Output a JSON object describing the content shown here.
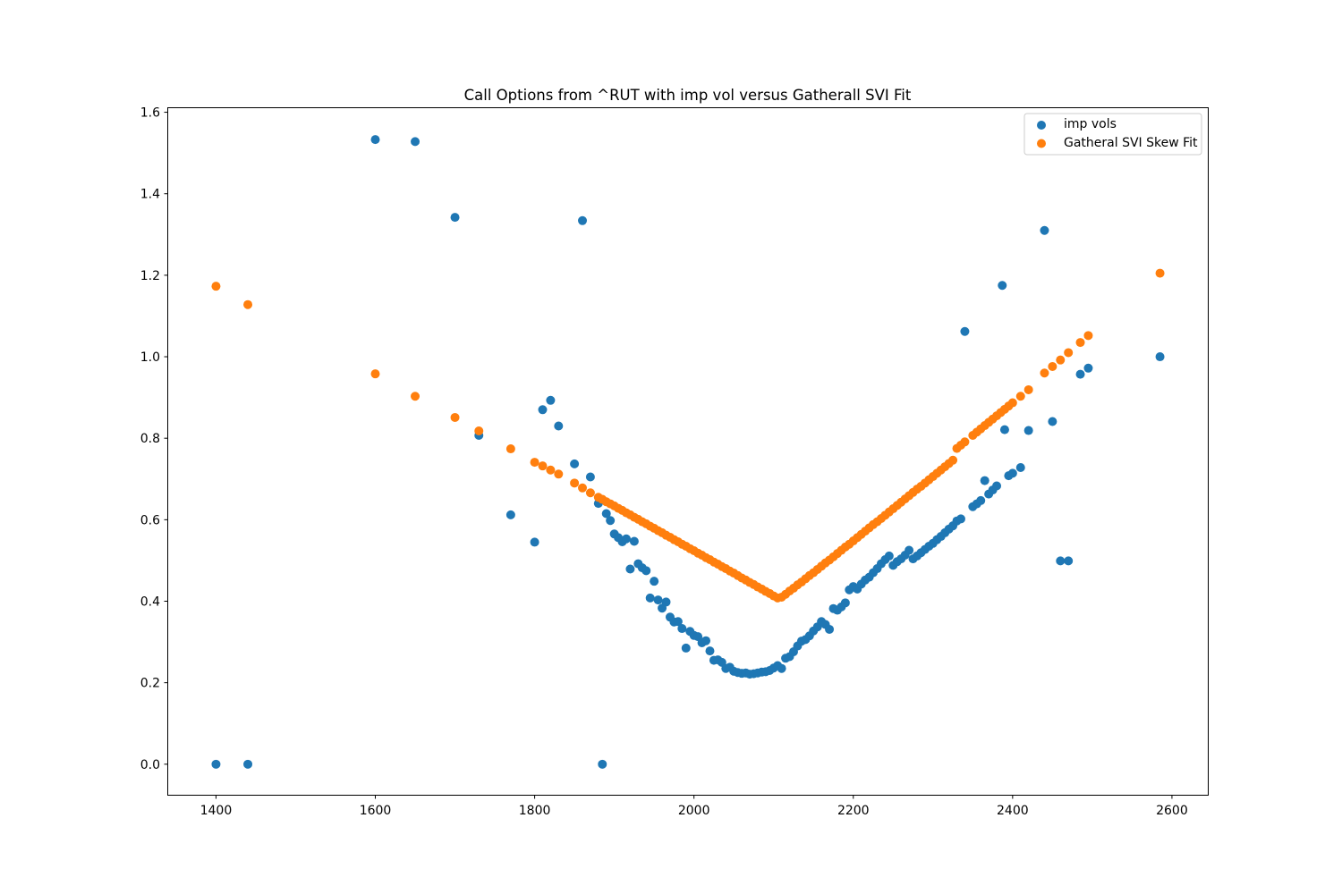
{
  "chart_data": {
    "type": "scatter",
    "title": "Call Options from ^RUT with imp vol versus Gatherall SVI Fit",
    "xlabel": "",
    "ylabel": "",
    "xlim": [
      1340,
      2645
    ],
    "ylim": [
      -0.075,
      1.61
    ],
    "x_ticks": [
      "1400",
      "1600",
      "1800",
      "2000",
      "2200",
      "2400",
      "2600"
    ],
    "y_ticks": [
      "0.0",
      "0.2",
      "0.4",
      "0.6",
      "0.8",
      "1.0",
      "1.2",
      "1.4",
      "1.6"
    ],
    "grid": false,
    "legend_position": "top-right",
    "series": [
      {
        "name": "imp vols",
        "color": "#1f77b4",
        "points": [
          [
            1400,
            0.0
          ],
          [
            1440,
            0.0
          ],
          [
            1600,
            1.533
          ],
          [
            1650,
            1.528
          ],
          [
            1700,
            1.342
          ],
          [
            1730,
            0.807
          ],
          [
            1770,
            0.612
          ],
          [
            1800,
            0.545
          ],
          [
            1810,
            0.87
          ],
          [
            1820,
            0.893
          ],
          [
            1830,
            0.83
          ],
          [
            1850,
            0.737
          ],
          [
            1860,
            1.334
          ],
          [
            1870,
            0.705
          ],
          [
            1880,
            0.64
          ],
          [
            1885,
            0.0
          ],
          [
            1890,
            0.615
          ],
          [
            1895,
            0.598
          ],
          [
            1900,
            0.565
          ],
          [
            1905,
            0.556
          ],
          [
            1910,
            0.546
          ],
          [
            1915,
            0.553
          ],
          [
            1920,
            0.479
          ],
          [
            1925,
            0.547
          ],
          [
            1930,
            0.492
          ],
          [
            1935,
            0.482
          ],
          [
            1940,
            0.475
          ],
          [
            1945,
            0.408
          ],
          [
            1950,
            0.449
          ],
          [
            1955,
            0.403
          ],
          [
            1960,
            0.383
          ],
          [
            1965,
            0.398
          ],
          [
            1970,
            0.361
          ],
          [
            1975,
            0.349
          ],
          [
            1980,
            0.35
          ],
          [
            1985,
            0.333
          ],
          [
            1990,
            0.285
          ],
          [
            1995,
            0.326
          ],
          [
            2000,
            0.316
          ],
          [
            2005,
            0.313
          ],
          [
            2010,
            0.298
          ],
          [
            2015,
            0.303
          ],
          [
            2020,
            0.278
          ],
          [
            2025,
            0.255
          ],
          [
            2030,
            0.256
          ],
          [
            2035,
            0.25
          ],
          [
            2040,
            0.235
          ],
          [
            2045,
            0.238
          ],
          [
            2050,
            0.228
          ],
          [
            2055,
            0.225
          ],
          [
            2060,
            0.223
          ],
          [
            2065,
            0.224
          ],
          [
            2070,
            0.221
          ],
          [
            2075,
            0.222
          ],
          [
            2080,
            0.224
          ],
          [
            2085,
            0.226
          ],
          [
            2090,
            0.227
          ],
          [
            2095,
            0.23
          ],
          [
            2100,
            0.236
          ],
          [
            2105,
            0.242
          ],
          [
            2110,
            0.235
          ],
          [
            2115,
            0.26
          ],
          [
            2120,
            0.264
          ],
          [
            2125,
            0.276
          ],
          [
            2130,
            0.29
          ],
          [
            2135,
            0.302
          ],
          [
            2140,
            0.306
          ],
          [
            2145,
            0.315
          ],
          [
            2150,
            0.327
          ],
          [
            2155,
            0.337
          ],
          [
            2160,
            0.35
          ],
          [
            2165,
            0.343
          ],
          [
            2170,
            0.331
          ],
          [
            2175,
            0.382
          ],
          [
            2180,
            0.378
          ],
          [
            2185,
            0.386
          ],
          [
            2190,
            0.396
          ],
          [
            2195,
            0.428
          ],
          [
            2200,
            0.436
          ],
          [
            2205,
            0.43
          ],
          [
            2210,
            0.442
          ],
          [
            2215,
            0.452
          ],
          [
            2220,
            0.459
          ],
          [
            2225,
            0.47
          ],
          [
            2230,
            0.48
          ],
          [
            2235,
            0.492
          ],
          [
            2240,
            0.502
          ],
          [
            2245,
            0.511
          ],
          [
            2250,
            0.488
          ],
          [
            2255,
            0.497
          ],
          [
            2260,
            0.504
          ],
          [
            2265,
            0.513
          ],
          [
            2270,
            0.525
          ],
          [
            2275,
            0.504
          ],
          [
            2280,
            0.511
          ],
          [
            2285,
            0.519
          ],
          [
            2290,
            0.527
          ],
          [
            2295,
            0.535
          ],
          [
            2300,
            0.542
          ],
          [
            2305,
            0.551
          ],
          [
            2310,
            0.559
          ],
          [
            2315,
            0.568
          ],
          [
            2320,
            0.577
          ],
          [
            2325,
            0.585
          ],
          [
            2330,
            0.597
          ],
          [
            2335,
            0.602
          ],
          [
            2340,
            1.062
          ],
          [
            2350,
            0.632
          ],
          [
            2355,
            0.639
          ],
          [
            2360,
            0.647
          ],
          [
            2365,
            0.696
          ],
          [
            2370,
            0.663
          ],
          [
            2375,
            0.673
          ],
          [
            2380,
            0.683
          ],
          [
            2387,
            1.175
          ],
          [
            2390,
            0.821
          ],
          [
            2395,
            0.708
          ],
          [
            2400,
            0.714
          ],
          [
            2410,
            0.728
          ],
          [
            2420,
            0.819
          ],
          [
            2440,
            1.31
          ],
          [
            2450,
            0.841
          ],
          [
            2460,
            0.499
          ],
          [
            2470,
            0.499
          ],
          [
            2485,
            0.957
          ],
          [
            2495,
            0.972
          ],
          [
            2585,
            1.0
          ]
        ]
      },
      {
        "name": "Gatheral SVI Skew Fit",
        "color": "#ff7f0e",
        "points": [
          [
            1400,
            1.173
          ],
          [
            1440,
            1.128
          ],
          [
            1600,
            0.958
          ],
          [
            1650,
            0.903
          ],
          [
            1700,
            0.851
          ],
          [
            1730,
            0.818
          ],
          [
            1770,
            0.774
          ],
          [
            1800,
            0.741
          ],
          [
            1810,
            0.732
          ],
          [
            1820,
            0.722
          ],
          [
            1830,
            0.712
          ],
          [
            1850,
            0.69
          ],
          [
            1860,
            0.678
          ],
          [
            1870,
            0.666
          ],
          [
            1880,
            0.655
          ],
          [
            1885,
            0.65
          ],
          [
            1890,
            0.644
          ],
          [
            1895,
            0.639
          ],
          [
            1900,
            0.634
          ],
          [
            1905,
            0.628
          ],
          [
            1910,
            0.623
          ],
          [
            1915,
            0.617
          ],
          [
            1920,
            0.612
          ],
          [
            1925,
            0.606
          ],
          [
            1930,
            0.601
          ],
          [
            1935,
            0.595
          ],
          [
            1940,
            0.59
          ],
          [
            1945,
            0.584
          ],
          [
            1950,
            0.579
          ],
          [
            1955,
            0.573
          ],
          [
            1960,
            0.568
          ],
          [
            1965,
            0.562
          ],
          [
            1970,
            0.557
          ],
          [
            1975,
            0.551
          ],
          [
            1980,
            0.546
          ],
          [
            1985,
            0.54
          ],
          [
            1990,
            0.535
          ],
          [
            1995,
            0.529
          ],
          [
            2000,
            0.524
          ],
          [
            2005,
            0.518
          ],
          [
            2010,
            0.513
          ],
          [
            2015,
            0.507
          ],
          [
            2020,
            0.502
          ],
          [
            2025,
            0.496
          ],
          [
            2030,
            0.491
          ],
          [
            2035,
            0.485
          ],
          [
            2040,
            0.48
          ],
          [
            2045,
            0.474
          ],
          [
            2050,
            0.469
          ],
          [
            2055,
            0.463
          ],
          [
            2060,
            0.457
          ],
          [
            2065,
            0.452
          ],
          [
            2070,
            0.446
          ],
          [
            2075,
            0.441
          ],
          [
            2080,
            0.435
          ],
          [
            2085,
            0.43
          ],
          [
            2090,
            0.424
          ],
          [
            2095,
            0.419
          ],
          [
            2100,
            0.413
          ],
          [
            2105,
            0.408
          ],
          [
            2110,
            0.41
          ],
          [
            2115,
            0.417
          ],
          [
            2120,
            0.425
          ],
          [
            2125,
            0.432
          ],
          [
            2130,
            0.44
          ],
          [
            2135,
            0.447
          ],
          [
            2140,
            0.455
          ],
          [
            2145,
            0.463
          ],
          [
            2150,
            0.47
          ],
          [
            2155,
            0.478
          ],
          [
            2160,
            0.486
          ],
          [
            2165,
            0.494
          ],
          [
            2170,
            0.501
          ],
          [
            2175,
            0.509
          ],
          [
            2180,
            0.517
          ],
          [
            2185,
            0.525
          ],
          [
            2190,
            0.533
          ],
          [
            2195,
            0.54
          ],
          [
            2200,
            0.548
          ],
          [
            2205,
            0.556
          ],
          [
            2210,
            0.564
          ],
          [
            2215,
            0.572
          ],
          [
            2220,
            0.58
          ],
          [
            2225,
            0.588
          ],
          [
            2230,
            0.595
          ],
          [
            2235,
            0.603
          ],
          [
            2240,
            0.611
          ],
          [
            2245,
            0.619
          ],
          [
            2250,
            0.627
          ],
          [
            2255,
            0.635
          ],
          [
            2260,
            0.643
          ],
          [
            2265,
            0.651
          ],
          [
            2270,
            0.659
          ],
          [
            2275,
            0.667
          ],
          [
            2280,
            0.675
          ],
          [
            2285,
            0.682
          ],
          [
            2290,
            0.69
          ],
          [
            2295,
            0.698
          ],
          [
            2300,
            0.706
          ],
          [
            2305,
            0.714
          ],
          [
            2310,
            0.722
          ],
          [
            2315,
            0.73
          ],
          [
            2320,
            0.738
          ],
          [
            2325,
            0.746
          ],
          [
            2330,
            0.775
          ],
          [
            2335,
            0.783
          ],
          [
            2340,
            0.791
          ],
          [
            2350,
            0.807
          ],
          [
            2355,
            0.815
          ],
          [
            2360,
            0.823
          ],
          [
            2365,
            0.831
          ],
          [
            2370,
            0.839
          ],
          [
            2375,
            0.847
          ],
          [
            2380,
            0.855
          ],
          [
            2385,
            0.863
          ],
          [
            2390,
            0.871
          ],
          [
            2395,
            0.879
          ],
          [
            2400,
            0.887
          ],
          [
            2410,
            0.903
          ],
          [
            2420,
            0.919
          ],
          [
            2440,
            0.96
          ],
          [
            2450,
            0.976
          ],
          [
            2460,
            0.992
          ],
          [
            2470,
            1.01
          ],
          [
            2485,
            1.035
          ],
          [
            2495,
            1.052
          ],
          [
            2585,
            1.205
          ]
        ]
      }
    ]
  }
}
